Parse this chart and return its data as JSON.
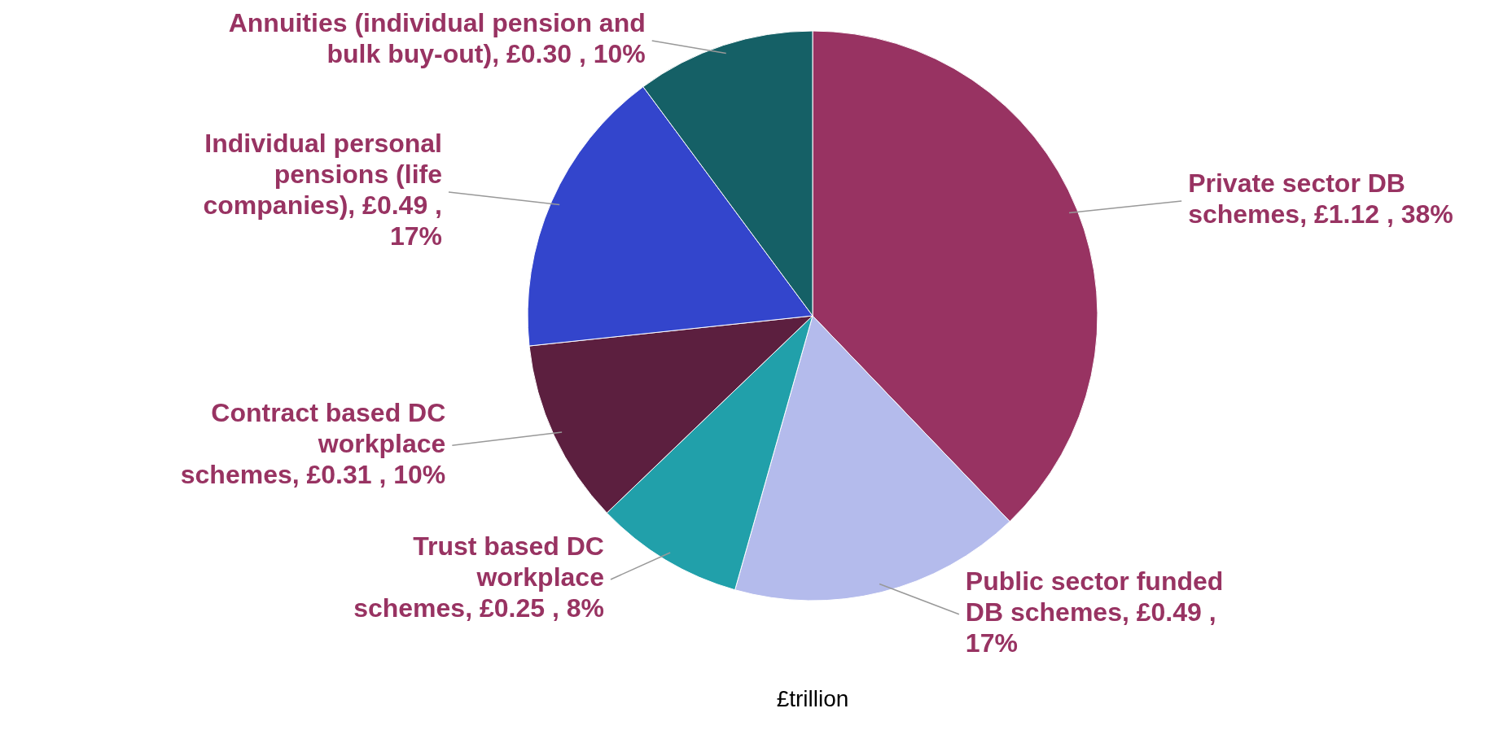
{
  "chart_data": {
    "type": "pie",
    "categories": [
      "Private sector DB schemes",
      "Public sector funded DB schemes",
      "Trust based DC workplace schemes",
      "Contract based DC workplace schemes",
      "Individual personal pensions (life companies)",
      "Annuities (individual pension and bulk buy-out)"
    ],
    "values": [
      1.12,
      0.49,
      0.25,
      0.31,
      0.49,
      0.3
    ],
    "value_labels": [
      "£1.12 , 38%",
      "£0.49 , 17%",
      "£0.25 , 8%",
      "£0.31 , 10%",
      "£0.49 , 17%",
      "£0.30 , 10%"
    ],
    "colors": [
      "#983362",
      "#b4bbec",
      "#21a0aa",
      "#5c1f3f",
      "#3345cc",
      "#156066"
    ],
    "annotations": [
      "£trillion"
    ]
  }
}
